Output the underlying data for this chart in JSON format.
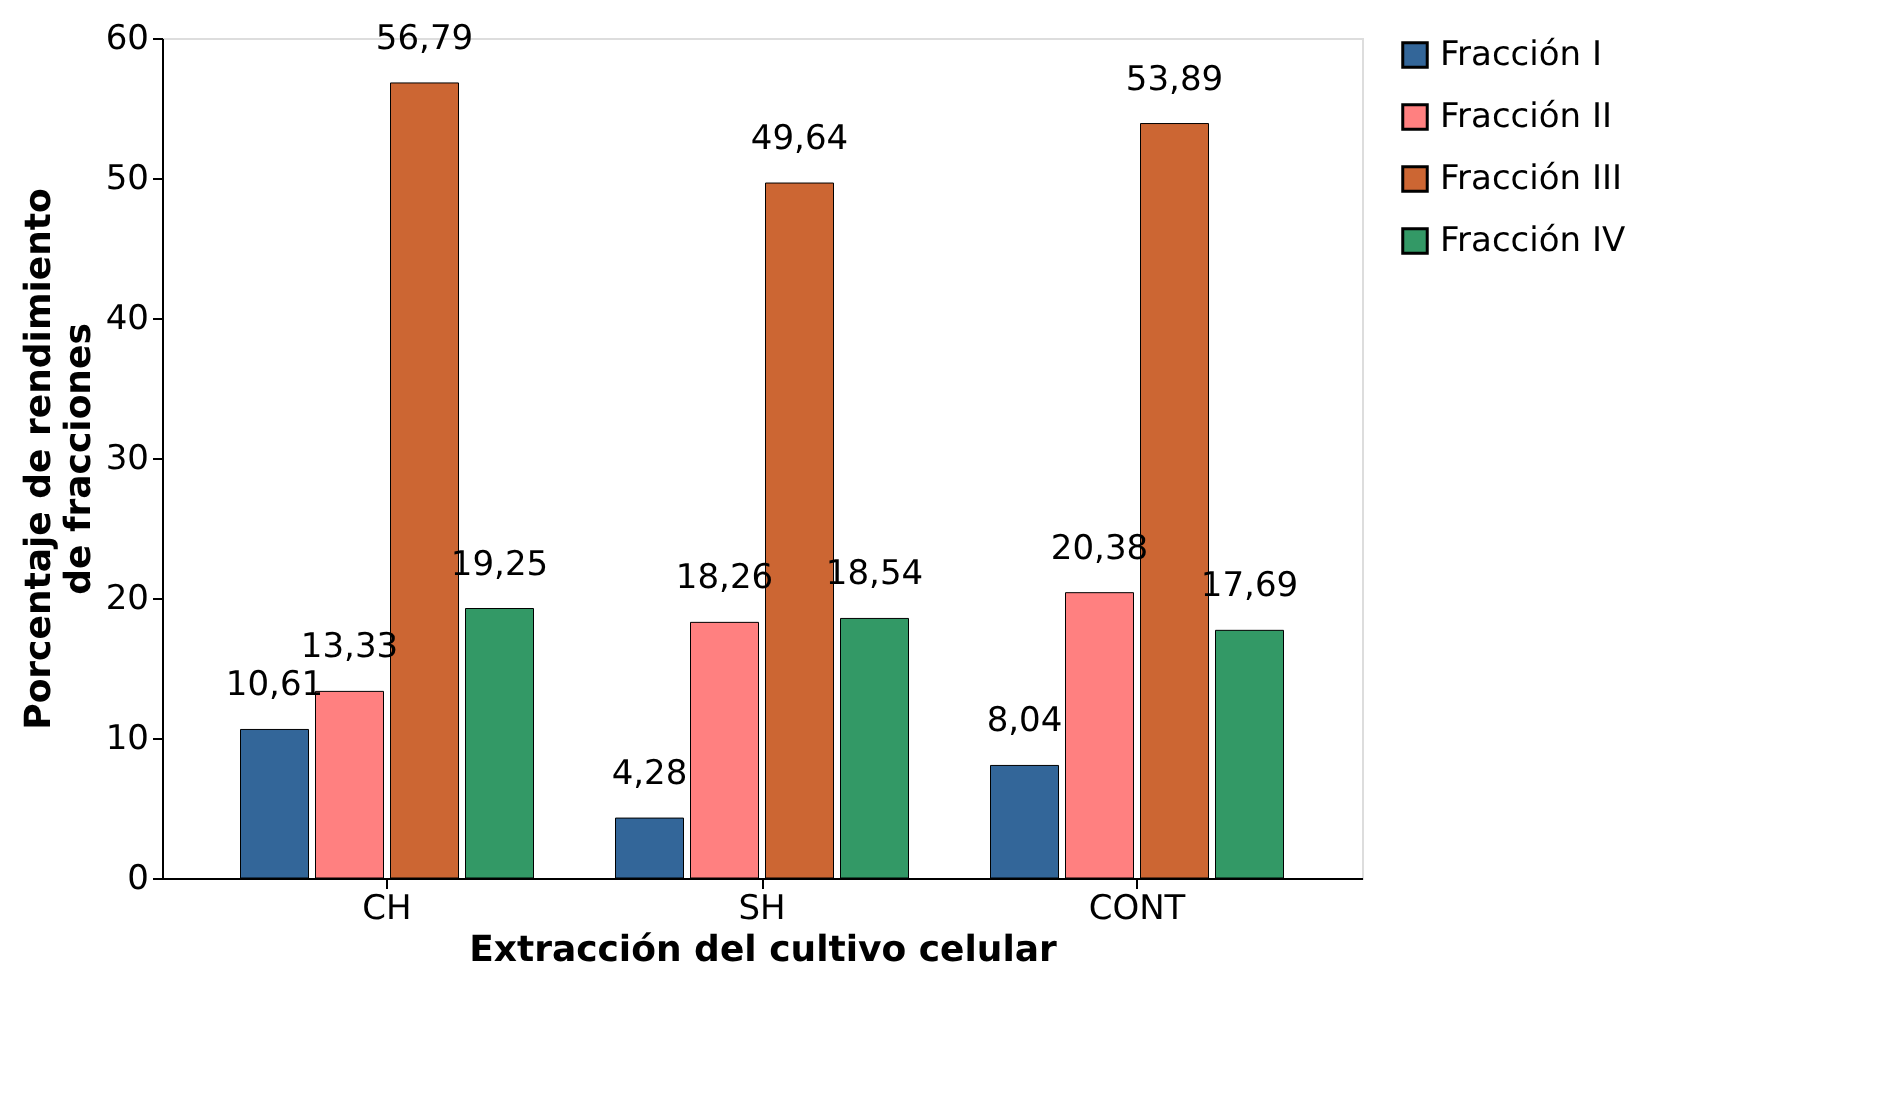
{
  "chart_data": {
    "type": "bar",
    "xlabel": "Extracción del cultivo celular",
    "ylabel": "Porcentaje de rendimiento de fracciones",
    "categories": [
      "CH",
      "SH",
      "CONT"
    ],
    "series": [
      {
        "name": "Fracción I",
        "color": "#336699",
        "values": [
          10.61,
          4.28,
          8.04
        ]
      },
      {
        "name": "Fracción II",
        "color": "#ff8080",
        "values": [
          13.33,
          18.26,
          20.38
        ]
      },
      {
        "name": "Fracción III",
        "color": "#cc6633",
        "values": [
          56.79,
          49.64,
          53.89
        ]
      },
      {
        "name": "Fracción IV",
        "color": "#339966",
        "values": [
          19.25,
          18.54,
          17.69
        ]
      }
    ],
    "value_labels": [
      [
        "10,61",
        "4,28",
        "8,04"
      ],
      [
        "13,33",
        "18,26",
        "20,38"
      ],
      [
        "56,79",
        "49,64",
        "53,89"
      ],
      [
        "19,25",
        "18,54",
        "17,69"
      ]
    ],
    "ylim": [
      0,
      60
    ],
    "yticks": [
      0,
      10,
      20,
      30,
      40,
      50,
      60
    ],
    "grid": false,
    "legend": "right"
  }
}
